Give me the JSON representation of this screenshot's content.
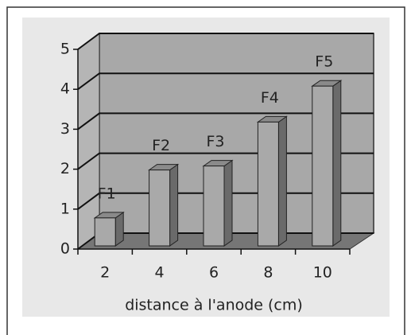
{
  "chart_data": {
    "type": "bar3d",
    "x_label": "distance à l'anode (cm)",
    "categories": [
      "2",
      "4",
      "6",
      "8",
      "10"
    ],
    "values": [
      0.7,
      1.9,
      2.0,
      3.1,
      4.0
    ],
    "annotations": [
      "F1",
      "F2",
      "F3",
      "F4",
      "F5"
    ],
    "color": "#a9a9a9",
    "ylim": [
      0,
      5
    ],
    "yticks": [
      0,
      1,
      2,
      3,
      4,
      5
    ],
    "grid": true
  }
}
